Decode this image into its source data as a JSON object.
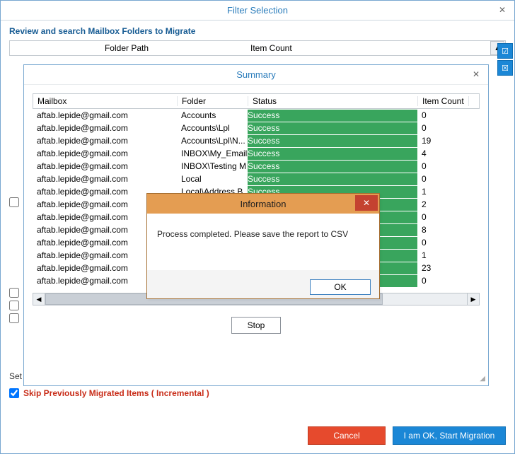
{
  "outer": {
    "title": "Filter Selection",
    "subtitle": "Review and search Mailbox Folders to Migrate",
    "columns": {
      "folder_path": "Folder Path",
      "item_count": "Item Count"
    },
    "set_label": "Set",
    "skip_label": "Skip Previously Migrated Items ( Incremental )",
    "cancel": "Cancel",
    "start": "I am OK, Start Migration"
  },
  "summary": {
    "title": "Summary",
    "columns": {
      "mailbox": "Mailbox",
      "folder": "Folder",
      "status": "Status",
      "item_count": "Item Count"
    },
    "stop": "Stop",
    "status_success_bg": "#39a55d",
    "rows": [
      {
        "mailbox": "aftab.lepide@gmail.com",
        "folder": "Accounts",
        "status": "Success",
        "count": "0"
      },
      {
        "mailbox": "aftab.lepide@gmail.com",
        "folder": "Accounts\\Lpl",
        "status": "Success",
        "count": "0"
      },
      {
        "mailbox": "aftab.lepide@gmail.com",
        "folder": "Accounts\\Lpl\\N...",
        "status": "Success",
        "count": "19"
      },
      {
        "mailbox": "aftab.lepide@gmail.com",
        "folder": "INBOX\\My_Emails",
        "status": "Success",
        "count": "4"
      },
      {
        "mailbox": "aftab.lepide@gmail.com",
        "folder": "INBOX\\Testing M",
        "status": "Success",
        "count": "0"
      },
      {
        "mailbox": "aftab.lepide@gmail.com",
        "folder": "Local",
        "status": "Success",
        "count": "0"
      },
      {
        "mailbox": "aftab.lepide@gmail.com",
        "folder": "Local\\Address B",
        "status": "Success",
        "count": "1"
      },
      {
        "mailbox": "aftab.lepide@gmail.com",
        "folder": "",
        "status": "",
        "count": "2"
      },
      {
        "mailbox": "aftab.lepide@gmail.com",
        "folder": "",
        "status": "",
        "count": "0"
      },
      {
        "mailbox": "aftab.lepide@gmail.com",
        "folder": "",
        "status": "",
        "count": "8"
      },
      {
        "mailbox": "aftab.lepide@gmail.com",
        "folder": "",
        "status": "",
        "count": "0"
      },
      {
        "mailbox": "aftab.lepide@gmail.com",
        "folder": "",
        "status": "",
        "count": "1"
      },
      {
        "mailbox": "aftab.lepide@gmail.com",
        "folder": "",
        "status": "",
        "count": "23"
      },
      {
        "mailbox": "aftab.lepide@gmail.com",
        "folder": "",
        "status": "",
        "count": "0"
      }
    ]
  },
  "info": {
    "title": "Information",
    "message": "Process completed. Please save the report to CSV",
    "ok": "OK"
  },
  "colors": {
    "accent_blue": "#1b87d6",
    "cancel_red": "#e64a2d",
    "skip_red": "#c82c18",
    "info_title_bg": "#e49d52",
    "info_close_bg": "#c44230"
  }
}
